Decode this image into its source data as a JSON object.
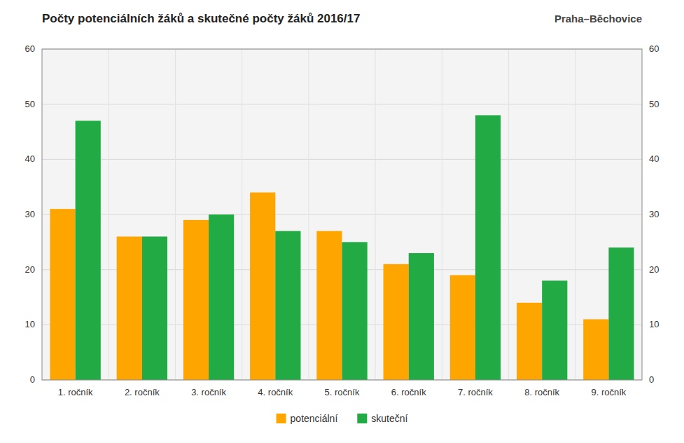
{
  "chart_data": {
    "type": "bar",
    "title": "Počty potenciálních žáků a skutečné počty žáků 2016/17",
    "subtitle": "Praha–Běchovice",
    "categories": [
      "1. ročník",
      "2. ročník",
      "3. ročník",
      "4. ročník",
      "5. ročník",
      "6. ročník",
      "7. ročník",
      "8. ročník",
      "9. ročník"
    ],
    "series": [
      {
        "name": "potenciální",
        "color": "#FFA500",
        "values": [
          31,
          26,
          29,
          34,
          27,
          21,
          19,
          14,
          11
        ]
      },
      {
        "name": "skuteční",
        "color": "#22AA44",
        "values": [
          47,
          26,
          30,
          27,
          25,
          23,
          48,
          18,
          24
        ]
      }
    ],
    "ylim": [
      0,
      60
    ],
    "yticks": [
      0,
      10,
      20,
      30,
      40,
      50,
      60
    ],
    "y2lim": [
      0,
      60
    ],
    "y2ticks": [
      0,
      10,
      20,
      30,
      40,
      50,
      60
    ],
    "grid": true,
    "legend": "bottom"
  }
}
